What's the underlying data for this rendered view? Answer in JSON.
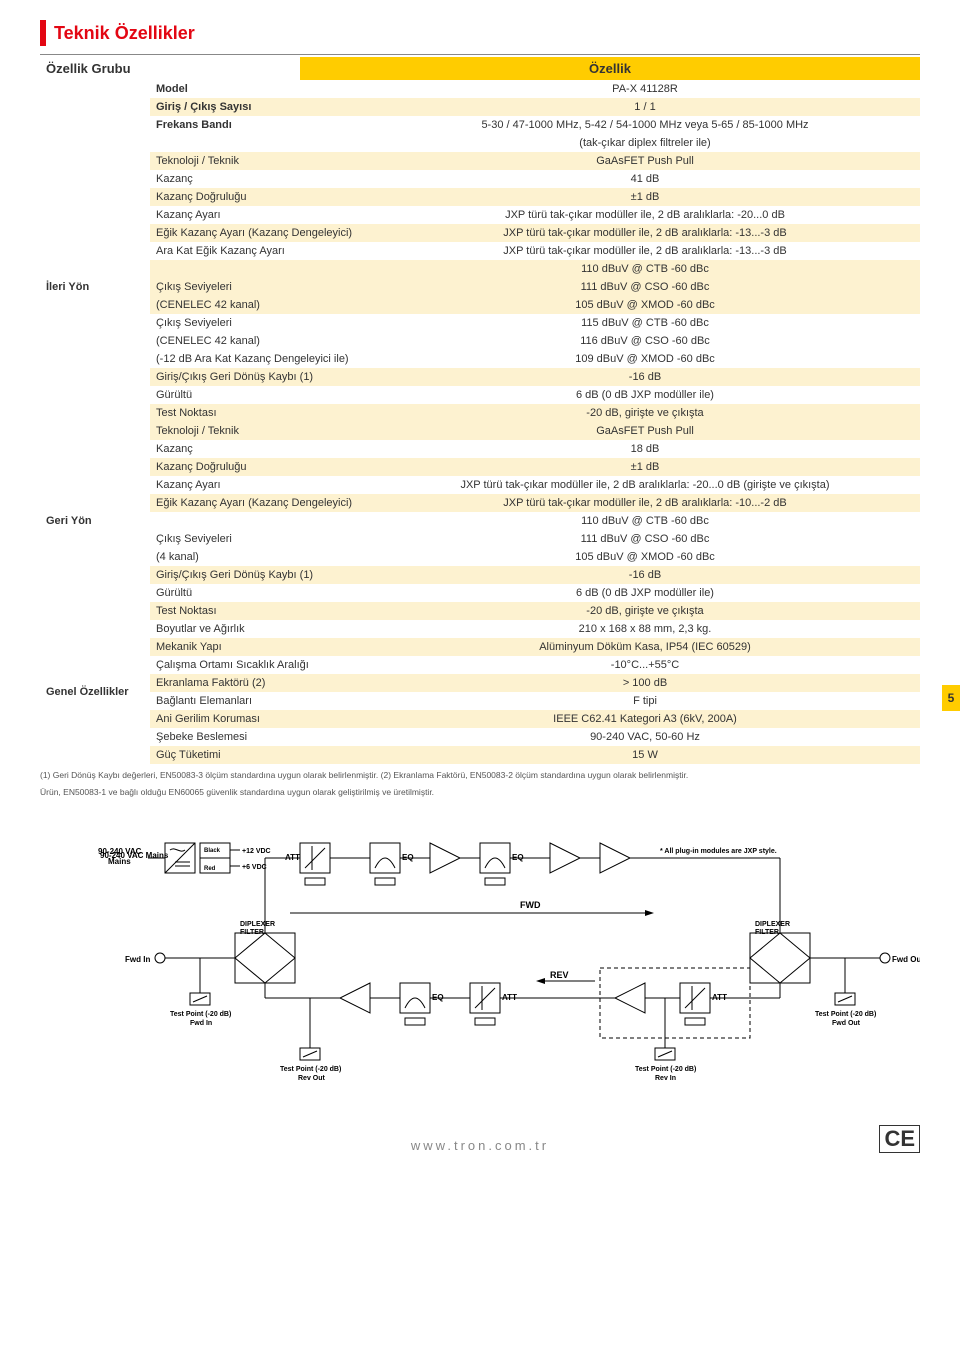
{
  "title": "Teknik Özellikler",
  "header": {
    "left": "Özellik Grubu",
    "right": "Özellik"
  },
  "side_tab": "5",
  "groups": [
    {
      "name": "",
      "rows": [
        {
          "attr": "Model",
          "val": "PA-X 41128R",
          "tint": false,
          "bold_attr": true
        },
        {
          "attr": "Giriş / Çıkış Sayısı",
          "val": "1 / 1",
          "tint": true,
          "bold_attr": true
        }
      ]
    },
    {
      "name": "",
      "rows": [
        {
          "attr": "Frekans Bandı",
          "val": "5-30 / 47-1000 MHz, 5-42 / 54-1000 MHz veya 5-65 / 85-1000 MHz",
          "tint": false,
          "bold_attr": true
        },
        {
          "attr": "",
          "val": "(tak-çıkar diplex filtreler ile)",
          "tint": false
        }
      ]
    },
    {
      "name": "İleri Yön",
      "rows": [
        {
          "attr": "Teknoloji / Teknik",
          "val": "GaAsFET Push Pull",
          "tint": true
        },
        {
          "attr": "Kazanç",
          "val": "41 dB",
          "tint": false
        },
        {
          "attr": "Kazanç Doğruluğu",
          "val": "±1 dB",
          "tint": true
        },
        {
          "attr": "Kazanç Ayarı",
          "val": "JXP türü tak-çıkar modüller ile, 2 dB aralıklarla: -20...0 dB",
          "tint": false
        },
        {
          "attr": "Eğik Kazanç Ayarı (Kazanç Dengeleyici)",
          "val": "JXP türü tak-çıkar modüller ile, 2 dB aralıklarla: -13...-3 dB",
          "tint": true
        },
        {
          "attr": "Ara Kat Eğik Kazanç Ayarı",
          "val": "JXP türü tak-çıkar modüller ile, 2 dB aralıklarla: -13...-3 dB",
          "tint": false
        },
        {
          "attr": "",
          "val": "110 dBuV @ CTB -60 dBc",
          "tint": true
        },
        {
          "attr": "Çıkış Seviyeleri",
          "val": "111 dBuV @ CSO -60 dBc",
          "tint": true
        },
        {
          "attr": "(CENELEC 42 kanal)",
          "val": "105 dBuV @ XMOD -60 dBc",
          "tint": true
        },
        {
          "attr": "Çıkış Seviyeleri",
          "val": "115 dBuV @ CTB -60 dBc",
          "tint": false
        },
        {
          "attr": "(CENELEC 42 kanal)",
          "val": "116 dBuV @ CSO -60 dBc",
          "tint": false
        },
        {
          "attr": "(-12 dB Ara Kat Kazanç Dengeleyici ile)",
          "val": "109 dBuV @ XMOD -60 dBc",
          "tint": false
        },
        {
          "attr": "Giriş/Çıkış Geri Dönüş Kaybı (1)",
          "val": "-16 dB",
          "tint": true
        },
        {
          "attr": "Gürültü",
          "val": "6 dB (0 dB JXP modüller ile)",
          "tint": false
        },
        {
          "attr": "Test Noktası",
          "val": "-20 dB, girişte ve çıkışta",
          "tint": true
        }
      ]
    },
    {
      "name": "Geri Yön",
      "rows": [
        {
          "attr": "Teknoloji / Teknik",
          "val": "GaAsFET Push Pull",
          "tint": true
        },
        {
          "attr": "Kazanç",
          "val": "18 dB",
          "tint": false
        },
        {
          "attr": "Kazanç Doğruluğu",
          "val": "±1 dB",
          "tint": true
        },
        {
          "attr": "Kazanç Ayarı",
          "val": "JXP türü tak-çıkar modüller ile, 2 dB aralıklarla: -20...0 dB (girişte ve çıkışta)",
          "tint": false
        },
        {
          "attr": "Eğik Kazanç Ayarı (Kazanç Dengeleyici)",
          "val": "JXP türü tak-çıkar modüller ile, 2 dB aralıklarla: -10...-2 dB",
          "tint": true
        },
        {
          "attr": "",
          "val": "110 dBuV @ CTB -60 dBc",
          "tint": false
        },
        {
          "attr": "Çıkış Seviyeleri",
          "val": "111 dBuV @ CSO -60 dBc",
          "tint": false
        },
        {
          "attr": "(4 kanal)",
          "val": "105 dBuV @ XMOD -60 dBc",
          "tint": false
        },
        {
          "attr": "Giriş/Çıkış Geri Dönüş Kaybı (1)",
          "val": "-16 dB",
          "tint": true
        },
        {
          "attr": "Gürültü",
          "val": "6 dB (0 dB JXP modüller ile)",
          "tint": false
        },
        {
          "attr": "Test Noktası",
          "val": "-20 dB, girişte ve çıkışta",
          "tint": true
        }
      ]
    },
    {
      "name": "Genel Özellikler",
      "rows": [
        {
          "attr": "Boyutlar ve Ağırlık",
          "val": "210 x 168 x 88 mm, 2,3 kg.",
          "tint": false
        },
        {
          "attr": "Mekanik Yapı",
          "val": "Alüminyum Döküm Kasa, IP54 (IEC 60529)",
          "tint": true
        },
        {
          "attr": "Çalışma Ortamı Sıcaklık Aralığı",
          "val": "-10°C...+55°C",
          "tint": false
        },
        {
          "attr": "Ekranlama Faktörü (2)",
          "val": "> 100 dB",
          "tint": true
        },
        {
          "attr": "Bağlantı Elemanları",
          "val": "F tipi",
          "tint": false
        },
        {
          "attr": "Ani Gerilim Koruması",
          "val": "IEEE C62.41 Kategori A3 (6kV, 200A)",
          "tint": true
        },
        {
          "attr": "Şebeke Beslemesi",
          "val": "90-240 VAC, 50-60 Hz",
          "tint": false
        },
        {
          "attr": "Güç Tüketimi",
          "val": "15 W",
          "tint": true
        }
      ]
    }
  ],
  "footnote1": "(1) Geri Dönüş Kaybı değerleri, EN50083-3 ölçüm standardına uygun olarak belirlenmiştir. (2) Ekranlama Faktörü, EN50083-2 ölçüm standardına uygun olarak belirlenmiştir.",
  "footnote2": "Ürün, EN50083-1 ve bağlı olduğu EN60065 güvenlik standardına uygun olarak geliştirilmiş ve üretilmiştir.",
  "diagram": {
    "mains": "90-240 VAC\nMains",
    "black": "Black",
    "red": "Red",
    "v12": "+12 VDC",
    "v6": "+6 VDC",
    "att": "ATT",
    "eq": "EQ",
    "fwd": "FWD",
    "rev": "REV",
    "diplexer": "DIPLEXER\nFILTER",
    "fwd_in": "Fwd In",
    "fwd_out": "Fwd Out",
    "rev_in": "Rev In",
    "rev_out": "Rev Out",
    "tp_fwd_in": "Test Point (-20 dB)\nFwd In",
    "tp_fwd_out": "Test Point (-20 dB)\nFwd Out",
    "tp_rev_out": "Test Point (-20 dB)\nRev Out",
    "tp_rev_in": "Test Point (-20 dB)\nRev In",
    "note": "* All plug-in modules are JXP style."
  },
  "footer_url": "www.tron.com.tr",
  "ce": "CE"
}
